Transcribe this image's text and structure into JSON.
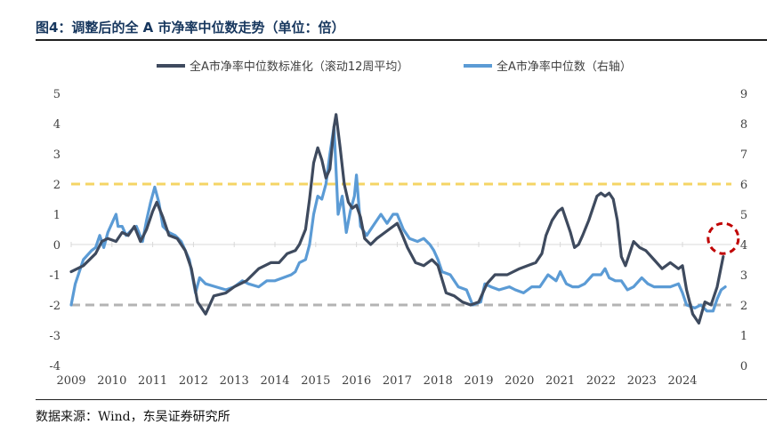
{
  "figure": {
    "title": "图4：调整后的全 A 市净率中位数走势（单位：倍）",
    "source": "数据来源：Wind，东吴证券研究所"
  },
  "colors": {
    "series1": "#3e4a5e",
    "series2": "#5b9bd5",
    "upper_line": "#f5d565",
    "lower_line": "#b4b4b4",
    "highlight": "#c00000",
    "axis": "#d9d9d9",
    "text": "#404040"
  },
  "chart_data": {
    "type": "line",
    "title": "",
    "x_range": [
      2009.0,
      2025.2
    ],
    "xticks": [
      2009,
      2010,
      2011,
      2012,
      2013,
      2014,
      2015,
      2016,
      2017,
      2018,
      2019,
      2020,
      2021,
      2022,
      2023,
      2024
    ],
    "left_axis": {
      "ylim": [
        -4,
        5
      ],
      "ticks": [
        5,
        4,
        3,
        2,
        1,
        0,
        -1,
        -2,
        -3,
        -4
      ]
    },
    "right_axis": {
      "ylim": [
        0,
        9
      ],
      "ticks": [
        9,
        8,
        7,
        6,
        5,
        4,
        3,
        2,
        1,
        0
      ]
    },
    "reference_lines": [
      {
        "name": "upper-threshold",
        "y": 2,
        "axis": "left",
        "style": "dashed"
      },
      {
        "name": "lower-threshold",
        "y": -2,
        "axis": "left",
        "style": "dashed"
      }
    ],
    "highlight": {
      "shape": "circle",
      "x": 2025.0,
      "y": 0.2,
      "axis": "left"
    },
    "series": [
      {
        "name": "全A市净率中位数标准化（滚动12周平均）",
        "axis": "left",
        "points": [
          [
            2009.0,
            -0.9
          ],
          [
            2009.3,
            -0.7
          ],
          [
            2009.6,
            -0.3
          ],
          [
            2009.75,
            0.1
          ],
          [
            2009.9,
            0.2
          ],
          [
            2010.1,
            0.1
          ],
          [
            2010.25,
            0.4
          ],
          [
            2010.4,
            0.3
          ],
          [
            2010.55,
            0.6
          ],
          [
            2010.7,
            0.1
          ],
          [
            2010.85,
            0.5
          ],
          [
            2011.0,
            1.1
          ],
          [
            2011.1,
            1.4
          ],
          [
            2011.25,
            0.9
          ],
          [
            2011.4,
            0.3
          ],
          [
            2011.6,
            0.2
          ],
          [
            2011.8,
            -0.2
          ],
          [
            2011.95,
            -0.8
          ],
          [
            2012.1,
            -1.9
          ],
          [
            2012.3,
            -2.3
          ],
          [
            2012.5,
            -1.7
          ],
          [
            2012.8,
            -1.6
          ],
          [
            2013.0,
            -1.4
          ],
          [
            2013.3,
            -1.2
          ],
          [
            2013.6,
            -0.8
          ],
          [
            2013.9,
            -0.6
          ],
          [
            2014.1,
            -0.6
          ],
          [
            2014.3,
            -0.3
          ],
          [
            2014.5,
            -0.2
          ],
          [
            2014.6,
            0.0
          ],
          [
            2014.75,
            0.5
          ],
          [
            2014.85,
            1.5
          ],
          [
            2014.95,
            2.7
          ],
          [
            2015.05,
            3.2
          ],
          [
            2015.15,
            2.8
          ],
          [
            2015.25,
            2.2
          ],
          [
            2015.35,
            2.5
          ],
          [
            2015.45,
            3.9
          ],
          [
            2015.5,
            4.3
          ],
          [
            2015.6,
            3.2
          ],
          [
            2015.7,
            2.0
          ],
          [
            2015.8,
            1.4
          ],
          [
            2015.9,
            1.2
          ],
          [
            2016.0,
            1.3
          ],
          [
            2016.1,
            0.9
          ],
          [
            2016.2,
            0.2
          ],
          [
            2016.35,
            0.0
          ],
          [
            2016.5,
            0.2
          ],
          [
            2016.7,
            0.4
          ],
          [
            2016.9,
            0.6
          ],
          [
            2017.0,
            0.7
          ],
          [
            2017.1,
            0.4
          ],
          [
            2017.25,
            -0.1
          ],
          [
            2017.45,
            -0.6
          ],
          [
            2017.65,
            -0.7
          ],
          [
            2017.85,
            -0.5
          ],
          [
            2018.0,
            -0.7
          ],
          [
            2018.2,
            -1.6
          ],
          [
            2018.4,
            -1.7
          ],
          [
            2018.6,
            -1.9
          ],
          [
            2018.8,
            -2.0
          ],
          [
            2019.0,
            -1.9
          ],
          [
            2019.2,
            -1.3
          ],
          [
            2019.4,
            -1.0
          ],
          [
            2019.7,
            -1.0
          ],
          [
            2020.0,
            -0.8
          ],
          [
            2020.2,
            -0.7
          ],
          [
            2020.4,
            -0.6
          ],
          [
            2020.55,
            -0.3
          ],
          [
            2020.65,
            0.3
          ],
          [
            2020.8,
            0.8
          ],
          [
            2020.95,
            1.1
          ],
          [
            2021.05,
            1.2
          ],
          [
            2021.15,
            0.8
          ],
          [
            2021.25,
            0.4
          ],
          [
            2021.35,
            -0.1
          ],
          [
            2021.45,
            0.0
          ],
          [
            2021.55,
            0.3
          ],
          [
            2021.7,
            0.8
          ],
          [
            2021.8,
            1.2
          ],
          [
            2021.9,
            1.6
          ],
          [
            2022.0,
            1.7
          ],
          [
            2022.1,
            1.6
          ],
          [
            2022.2,
            1.7
          ],
          [
            2022.3,
            1.5
          ],
          [
            2022.4,
            0.8
          ],
          [
            2022.5,
            -0.4
          ],
          [
            2022.6,
            -0.7
          ],
          [
            2022.7,
            -0.3
          ],
          [
            2022.8,
            0.1
          ],
          [
            2022.95,
            -0.1
          ],
          [
            2023.1,
            -0.2
          ],
          [
            2023.3,
            -0.5
          ],
          [
            2023.5,
            -0.8
          ],
          [
            2023.7,
            -0.6
          ],
          [
            2023.9,
            -0.8
          ],
          [
            2024.0,
            -0.7
          ],
          [
            2024.1,
            -1.5
          ],
          [
            2024.25,
            -2.3
          ],
          [
            2024.4,
            -2.6
          ],
          [
            2024.55,
            -1.9
          ],
          [
            2024.7,
            -2.0
          ],
          [
            2024.85,
            -1.4
          ],
          [
            2025.0,
            -0.4
          ]
        ]
      },
      {
        "name": "全A市净率中位数（右轴）",
        "axis": "right",
        "points": [
          [
            2009.0,
            2.0
          ],
          [
            2009.1,
            2.7
          ],
          [
            2009.3,
            3.5
          ],
          [
            2009.5,
            3.8
          ],
          [
            2009.6,
            3.9
          ],
          [
            2009.7,
            4.3
          ],
          [
            2009.8,
            3.9
          ],
          [
            2009.9,
            4.4
          ],
          [
            2010.0,
            4.7
          ],
          [
            2010.1,
            5.0
          ],
          [
            2010.15,
            4.6
          ],
          [
            2010.25,
            4.6
          ],
          [
            2010.35,
            4.3
          ],
          [
            2010.5,
            4.5
          ],
          [
            2010.6,
            4.6
          ],
          [
            2010.75,
            4.1
          ],
          [
            2010.85,
            4.8
          ],
          [
            2010.95,
            5.4
          ],
          [
            2011.05,
            5.9
          ],
          [
            2011.15,
            5.4
          ],
          [
            2011.25,
            4.6
          ],
          [
            2011.4,
            4.4
          ],
          [
            2011.55,
            4.3
          ],
          [
            2011.7,
            4.1
          ],
          [
            2011.9,
            3.5
          ],
          [
            2012.05,
            2.4
          ],
          [
            2012.15,
            2.9
          ],
          [
            2012.3,
            2.7
          ],
          [
            2012.55,
            2.6
          ],
          [
            2012.8,
            2.5
          ],
          [
            2013.0,
            2.6
          ],
          [
            2013.2,
            2.8
          ],
          [
            2013.35,
            2.7
          ],
          [
            2013.6,
            2.6
          ],
          [
            2013.8,
            2.8
          ],
          [
            2014.0,
            2.8
          ],
          [
            2014.2,
            2.9
          ],
          [
            2014.4,
            3.0
          ],
          [
            2014.5,
            3.1
          ],
          [
            2014.6,
            3.4
          ],
          [
            2014.75,
            3.5
          ],
          [
            2014.85,
            4.0
          ],
          [
            2014.95,
            5.0
          ],
          [
            2015.05,
            5.6
          ],
          [
            2015.15,
            5.5
          ],
          [
            2015.25,
            6.0
          ],
          [
            2015.35,
            7.0
          ],
          [
            2015.45,
            7.9
          ],
          [
            2015.55,
            5.0
          ],
          [
            2015.65,
            5.6
          ],
          [
            2015.75,
            4.4
          ],
          [
            2015.85,
            5.1
          ],
          [
            2015.95,
            5.6
          ],
          [
            2016.0,
            6.3
          ],
          [
            2016.1,
            4.6
          ],
          [
            2016.25,
            4.3
          ],
          [
            2016.4,
            4.6
          ],
          [
            2016.6,
            5.0
          ],
          [
            2016.75,
            4.7
          ],
          [
            2016.9,
            5.0
          ],
          [
            2017.0,
            5.0
          ],
          [
            2017.15,
            4.5
          ],
          [
            2017.3,
            4.2
          ],
          [
            2017.5,
            4.1
          ],
          [
            2017.65,
            4.2
          ],
          [
            2017.8,
            4.0
          ],
          [
            2017.9,
            3.8
          ],
          [
            2018.0,
            3.5
          ],
          [
            2018.1,
            3.1
          ],
          [
            2018.3,
            3.0
          ],
          [
            2018.5,
            2.6
          ],
          [
            2018.7,
            2.5
          ],
          [
            2018.85,
            2.0
          ],
          [
            2019.05,
            2.1
          ],
          [
            2019.15,
            2.7
          ],
          [
            2019.3,
            2.6
          ],
          [
            2019.5,
            2.5
          ],
          [
            2019.75,
            2.6
          ],
          [
            2019.9,
            2.5
          ],
          [
            2020.1,
            2.4
          ],
          [
            2020.3,
            2.6
          ],
          [
            2020.5,
            2.6
          ],
          [
            2020.7,
            3.0
          ],
          [
            2020.9,
            2.8
          ],
          [
            2021.0,
            3.1
          ],
          [
            2021.15,
            2.7
          ],
          [
            2021.3,
            2.6
          ],
          [
            2021.45,
            2.6
          ],
          [
            2021.6,
            2.7
          ],
          [
            2021.8,
            3.0
          ],
          [
            2022.0,
            3.0
          ],
          [
            2022.1,
            3.2
          ],
          [
            2022.2,
            2.9
          ],
          [
            2022.35,
            2.8
          ],
          [
            2022.5,
            2.8
          ],
          [
            2022.65,
            2.5
          ],
          [
            2022.8,
            2.6
          ],
          [
            2023.0,
            2.9
          ],
          [
            2023.15,
            2.7
          ],
          [
            2023.3,
            2.6
          ],
          [
            2023.5,
            2.6
          ],
          [
            2023.7,
            2.6
          ],
          [
            2023.9,
            2.7
          ],
          [
            2024.0,
            2.4
          ],
          [
            2024.1,
            2.0
          ],
          [
            2024.3,
            1.9
          ],
          [
            2024.45,
            2.0
          ],
          [
            2024.6,
            1.8
          ],
          [
            2024.75,
            1.8
          ],
          [
            2024.85,
            2.2
          ],
          [
            2024.95,
            2.5
          ],
          [
            2025.05,
            2.6
          ]
        ]
      }
    ]
  }
}
